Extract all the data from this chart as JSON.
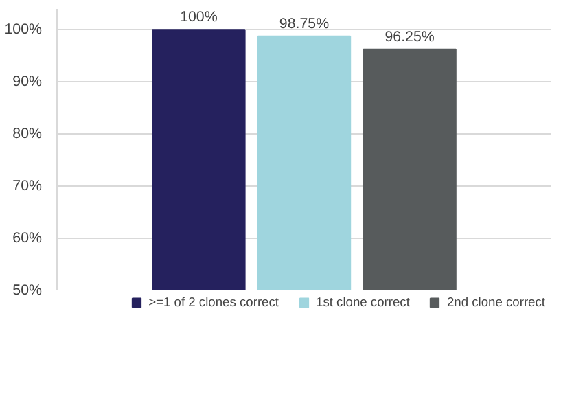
{
  "chart_data": {
    "type": "bar",
    "categories": [
      null
    ],
    "series": [
      {
        "name": ">=1 of 2 clones correct",
        "color": "#25215e",
        "values": [
          100
        ],
        "value_labels": [
          "100%"
        ]
      },
      {
        "name": "1st clone correct",
        "color": "#9fd5de",
        "values": [
          98.75
        ],
        "value_labels": [
          "98.75%"
        ]
      },
      {
        "name": "2nd clone correct",
        "color": "#575b5c",
        "values": [
          96.25
        ],
        "value_labels": [
          "96.25%"
        ]
      }
    ],
    "ylim": [
      50,
      104
    ],
    "yticks": [
      {
        "value": 50,
        "label": "50%"
      },
      {
        "value": 60,
        "label": "60%"
      },
      {
        "value": 70,
        "label": "70%"
      },
      {
        "value": 80,
        "label": "80%"
      },
      {
        "value": 90,
        "label": "90%"
      },
      {
        "value": 100,
        "label": "100%"
      }
    ],
    "grid": "y",
    "legend": "bottom"
  }
}
